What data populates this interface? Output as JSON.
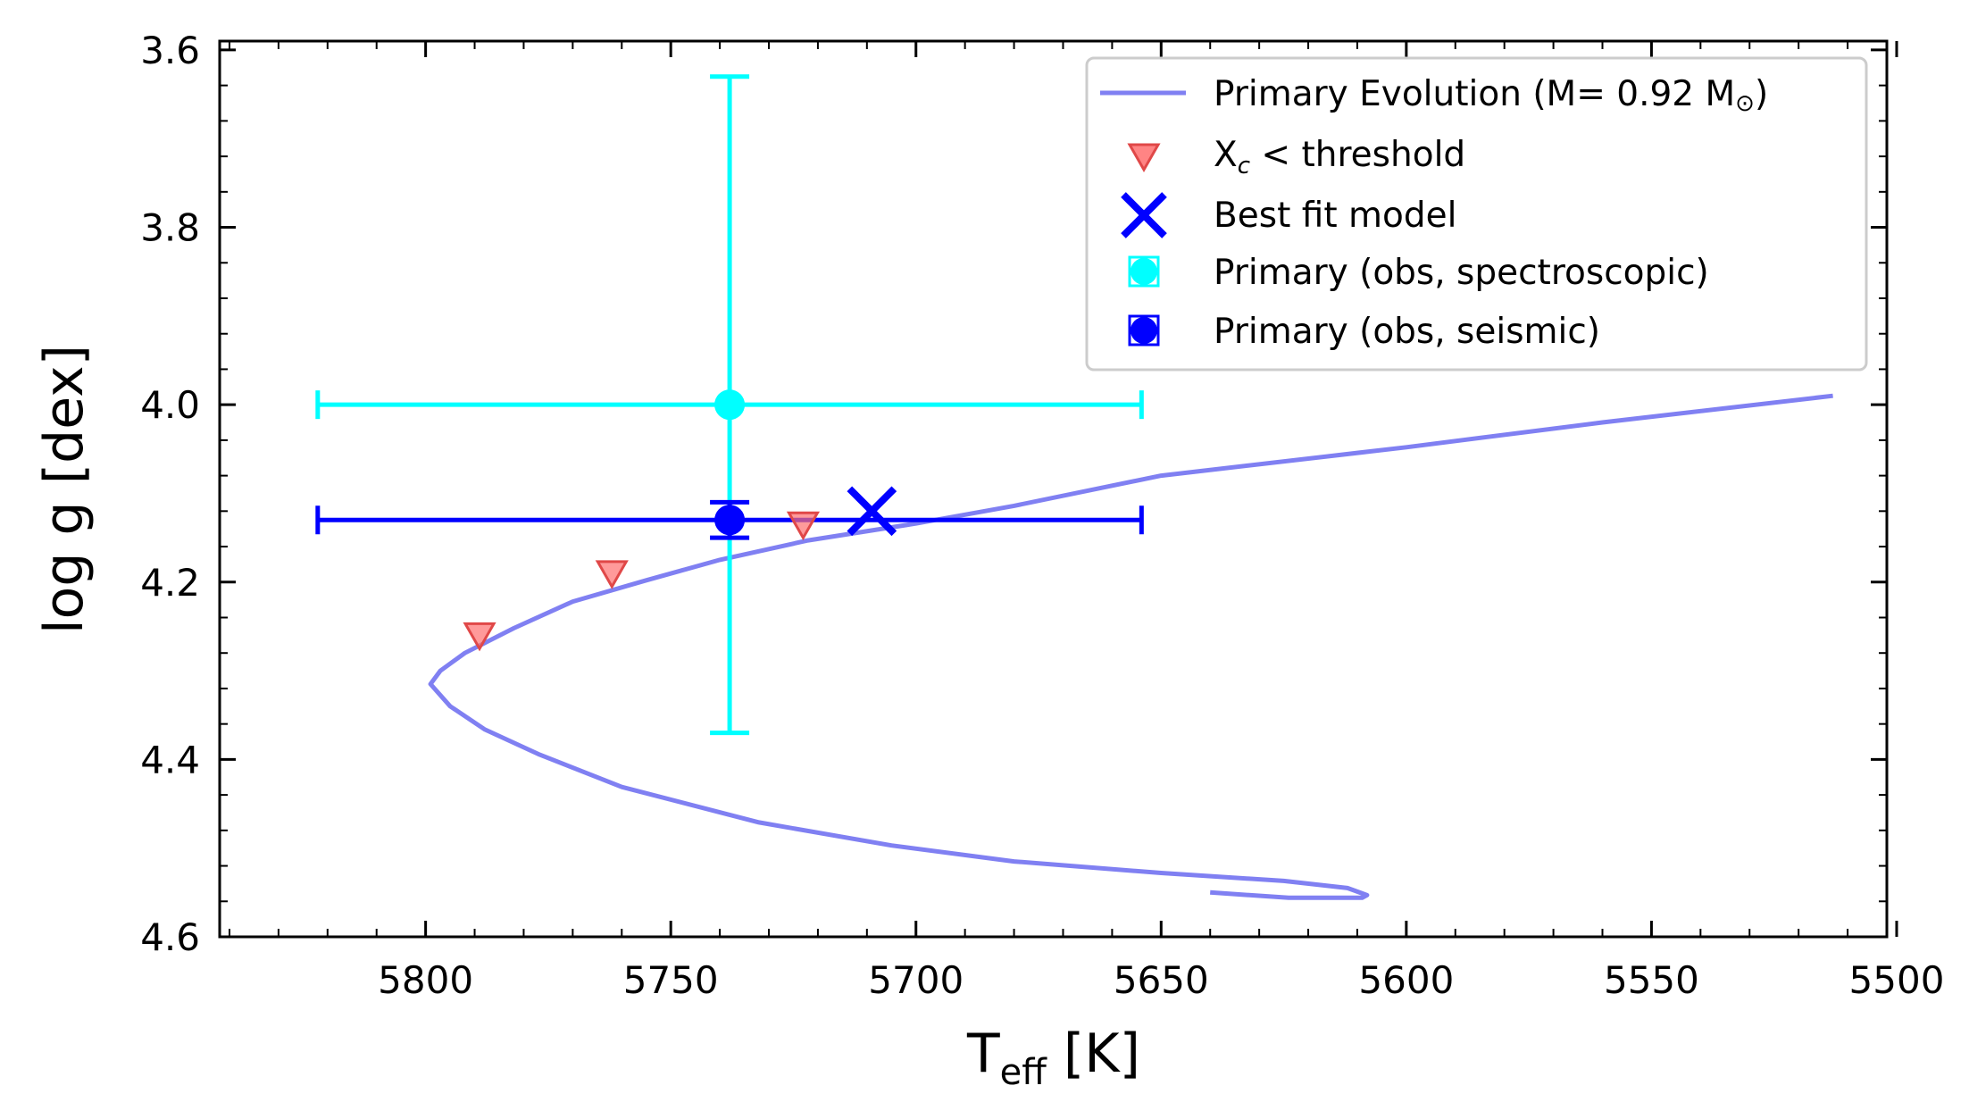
{
  "chart_data": {
    "type": "scatter",
    "title": "",
    "xlabel": "T",
    "xlabel_sub": "eff",
    "xlabel_unit": " [K]",
    "ylabel": "log g [dex]",
    "xlim": [
      5842,
      5502
    ],
    "ylim": [
      4.6,
      3.59
    ],
    "x_inverted": true,
    "y_inverted": true,
    "xticks": [
      5800,
      5750,
      5700,
      5650,
      5600,
      5550,
      5500
    ],
    "xtick_labels": [
      "5800",
      "5750",
      "5700",
      "5650",
      "5600",
      "5550",
      "5500"
    ],
    "yticks": [
      3.6,
      3.8,
      4.0,
      4.2,
      4.4,
      4.6
    ],
    "ytick_labels": [
      "3.6",
      "3.8",
      "4.0",
      "4.2",
      "4.4",
      "4.6"
    ],
    "x_minor_step": 10,
    "y_minor_step": 0.04,
    "grid": false,
    "legend_position": "top-right",
    "series": [
      {
        "name": "Primary Evolution (M= 0.92 M",
        "name_suffix": ")",
        "kind": "line",
        "color": "#8080f2",
        "points": [
          [
            5640,
            4.55
          ],
          [
            5624,
            4.556
          ],
          [
            5609,
            4.556
          ],
          [
            5608,
            4.553
          ],
          [
            5612,
            4.545
          ],
          [
            5625,
            4.537
          ],
          [
            5650,
            4.528
          ],
          [
            5680,
            4.515
          ],
          [
            5705,
            4.497
          ],
          [
            5732,
            4.471
          ],
          [
            5760,
            4.431
          ],
          [
            5777,
            4.394
          ],
          [
            5788,
            4.366
          ],
          [
            5795,
            4.34
          ],
          [
            5799,
            4.315
          ],
          [
            5797,
            4.3
          ],
          [
            5792,
            4.28
          ],
          [
            5782,
            4.252
          ],
          [
            5770,
            4.222
          ],
          [
            5755,
            4.198
          ],
          [
            5740,
            4.175
          ],
          [
            5722,
            4.153
          ],
          [
            5700,
            4.134
          ],
          [
            5680,
            4.114
          ],
          [
            5650,
            4.08
          ],
          [
            5600,
            4.048
          ],
          [
            5560,
            4.02
          ],
          [
            5513,
            3.99
          ]
        ]
      },
      {
        "name": "X",
        "name_sub": "c",
        "name_suffix": " < threshold",
        "kind": "marker",
        "marker": "triangle-down",
        "color": "#ff6f6f",
        "points": [
          [
            5789,
            4.26
          ],
          [
            5762,
            4.19
          ],
          [
            5723,
            4.135
          ]
        ]
      },
      {
        "name": "Best fit model",
        "kind": "marker",
        "marker": "x",
        "color": "#0000ff",
        "points": [
          [
            5709,
            4.12
          ]
        ]
      },
      {
        "name": "Primary (obs, spectroscopic)",
        "kind": "errorbar",
        "color": "#00ffff",
        "x": 5738,
        "y": 4.0,
        "xerr": [
          84,
          84
        ],
        "yerr": [
          0.37,
          0.37
        ]
      },
      {
        "name": "Primary (obs, seismic)",
        "kind": "errorbar",
        "color": "#0000ff",
        "x": 5738,
        "y": 4.13,
        "xerr": [
          84,
          84
        ],
        "yerr": [
          0.02,
          0.02
        ]
      }
    ]
  }
}
